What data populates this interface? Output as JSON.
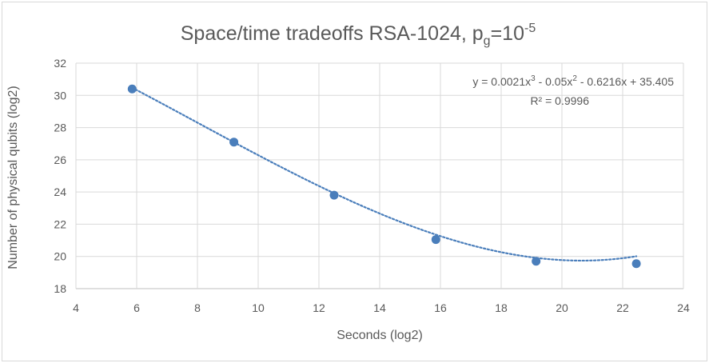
{
  "chart_data": {
    "type": "scatter",
    "title": {
      "main": "Space/time tradeoffs RSA-1024, p",
      "sub": "g",
      "mid": "=10",
      "sup": "-5"
    },
    "xlabel": "Seconds (log2)",
    "ylabel": "Number of physical qubits (log2)",
    "xlim": [
      4,
      24
    ],
    "ylim": [
      18,
      32
    ],
    "xticks": [
      4,
      6,
      8,
      10,
      12,
      14,
      16,
      18,
      20,
      22,
      24
    ],
    "yticks": [
      18,
      20,
      22,
      24,
      26,
      28,
      30,
      32
    ],
    "grid": true,
    "series": [
      {
        "points": [
          {
            "x": 5.85,
            "y": 30.4
          },
          {
            "x": 9.2,
            "y": 27.1
          },
          {
            "x": 12.5,
            "y": 23.8
          },
          {
            "x": 15.85,
            "y": 21.05
          },
          {
            "x": 19.15,
            "y": 19.7
          },
          {
            "x": 22.45,
            "y": 19.55
          }
        ],
        "color": "#4a7ebb"
      }
    ],
    "trendline": {
      "type": "polynomial",
      "order": 3,
      "coefficients": [
        0.0021,
        -0.05,
        -0.6216,
        35.405
      ],
      "x_range": [
        5.85,
        22.45
      ],
      "color": "#4a7ebb",
      "equation": {
        "p1": "y = 0.0021x",
        "s1": "3",
        "p2": " - 0.05x",
        "s2": "2",
        "p3": " - 0.6216x + 35.405"
      },
      "r2": "R² = 0.9996"
    }
  }
}
